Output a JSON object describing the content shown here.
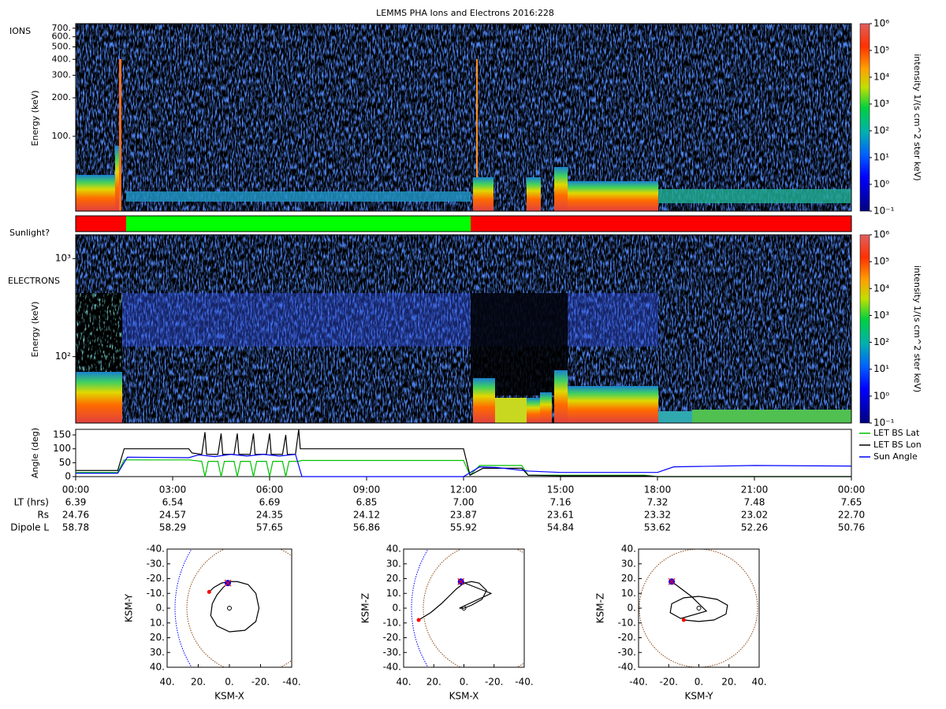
{
  "title": "LEMMS PHA Ions and Electrons  2016:228",
  "chart_data": [
    {
      "type": "spectrogram",
      "label": "IONS",
      "ylabel": "Energy (keV)",
      "log": true,
      "ylim": [
        26,
        760
      ],
      "yticks": [
        {
          "value": 100,
          "label": "100."
        },
        {
          "value": 200,
          "label": "200."
        },
        {
          "value": 300,
          "label": "300."
        },
        {
          "value": 400,
          "label": "400."
        },
        {
          "value": 500,
          "label": "500."
        },
        {
          "value": 600,
          "label": "600."
        },
        {
          "value": 700,
          "label": "700."
        }
      ],
      "colorbar": {
        "label": "intensity 1/(s cm^2 ster keV)",
        "lim": [
          0.1,
          1000000
        ],
        "ticks": [
          {
            "value": 0.1,
            "label": "10⁻¹"
          },
          {
            "value": 1,
            "label": "10⁰"
          },
          {
            "value": 10,
            "label": "10¹"
          },
          {
            "value": 100,
            "label": "10²"
          },
          {
            "value": 1000,
            "label": "10³"
          },
          {
            "value": 10000,
            "label": "10⁴"
          },
          {
            "value": 100000,
            "label": "10⁵"
          },
          {
            "value": 1000000,
            "label": "10⁶"
          }
        ]
      }
    },
    {
      "type": "timeline",
      "label": "Sunlight?",
      "xlim": [
        0,
        24
      ],
      "segments": [
        {
          "start": 0,
          "end": 1.56,
          "color": "#ff0000"
        },
        {
          "start": 1.56,
          "end": 12.22,
          "color": "#00ff00"
        },
        {
          "start": 12.22,
          "end": 24,
          "color": "#ff0000"
        }
      ]
    },
    {
      "type": "spectrogram",
      "label": "ELECTRONS",
      "ylabel": "Energy (keV)",
      "log": true,
      "ylim": [
        21,
        1750
      ],
      "yticks": [
        {
          "value": 100,
          "label": "10²"
        },
        {
          "value": 1000,
          "label": "10³"
        }
      ],
      "colorbar": {
        "label": "intensity 1/(s cm^2 ster keV)",
        "lim": [
          0.1,
          1000000
        ],
        "ticks": [
          {
            "value": 0.1,
            "label": "10⁻¹"
          },
          {
            "value": 1,
            "label": "10⁰"
          },
          {
            "value": 10,
            "label": "10¹"
          },
          {
            "value": 100,
            "label": "10²"
          },
          {
            "value": 1000,
            "label": "10³"
          },
          {
            "value": 10000,
            "label": "10⁴"
          },
          {
            "value": 100000,
            "label": "10⁵"
          },
          {
            "value": 1000000,
            "label": "10⁶"
          }
        ]
      }
    },
    {
      "type": "line",
      "ylabel": "Angle (deg)",
      "xlim": [
        0,
        24
      ],
      "ylim": [
        0,
        170
      ],
      "yticks": [
        0,
        50,
        100,
        150
      ],
      "legend": "right",
      "xticks": [
        {
          "value": 0,
          "label": "00:00"
        },
        {
          "value": 3,
          "label": "03:00"
        },
        {
          "value": 6,
          "label": "06:00"
        },
        {
          "value": 9,
          "label": "09:00"
        },
        {
          "value": 12,
          "label": "12:00"
        },
        {
          "value": 15,
          "label": "15:00"
        },
        {
          "value": 18,
          "label": "18:00"
        },
        {
          "value": 21,
          "label": "21:00"
        },
        {
          "value": 24,
          "label": "00:00"
        }
      ],
      "series": [
        {
          "name": "LET BS Lat",
          "color": "#00c000",
          "x": [
            0,
            1.3,
            1.5,
            3.5,
            3.9,
            4.0,
            4.1,
            4.4,
            4.5,
            4.6,
            4.9,
            5.0,
            5.1,
            5.4,
            5.5,
            5.6,
            5.9,
            6.0,
            6.1,
            6.4,
            6.5,
            6.6,
            6.9,
            7.0,
            12.0,
            12.2,
            12.5,
            13.8,
            14.0,
            17.6,
            18.0,
            24
          ],
          "values": [
            15,
            15,
            60,
            60,
            55,
            0,
            55,
            55,
            0,
            55,
            55,
            0,
            55,
            55,
            0,
            55,
            55,
            0,
            55,
            55,
            0,
            55,
            55,
            58,
            58,
            5,
            40,
            40,
            5,
            5,
            0,
            0
          ]
        },
        {
          "name": "LET BS Lon",
          "color": "#000000",
          "x": [
            0,
            1.3,
            1.5,
            3.5,
            3.6,
            3.9,
            4.0,
            4.05,
            4.4,
            4.5,
            4.55,
            4.9,
            5.0,
            5.05,
            5.4,
            5.5,
            5.55,
            5.9,
            6.0,
            6.05,
            6.4,
            6.5,
            6.55,
            6.8,
            6.9,
            6.95,
            12.0,
            12.2,
            12.6,
            13.0,
            13.8,
            14.0,
            15.0,
            16.0,
            17.6,
            18.0,
            24
          ],
          "values": [
            22,
            22,
            100,
            100,
            85,
            80,
            160,
            80,
            80,
            155,
            80,
            80,
            155,
            80,
            80,
            155,
            80,
            80,
            155,
            80,
            80,
            150,
            80,
            80,
            170,
            100,
            100,
            5,
            30,
            30,
            30,
            5,
            3,
            3,
            3,
            0,
            0
          ]
        },
        {
          "name": "Sun Angle",
          "color": "#0000ff",
          "x": [
            0,
            1.3,
            1.6,
            3.5,
            3.8,
            4.3,
            4.8,
            5.3,
            5.8,
            6.3,
            6.8,
            7.0,
            12.0,
            12.5,
            13.0,
            14.0,
            15.0,
            18.0,
            18.5,
            21.0,
            24
          ],
          "values": [
            12,
            12,
            70,
            68,
            78,
            72,
            80,
            74,
            80,
            74,
            80,
            0,
            0,
            35,
            33,
            20,
            15,
            15,
            35,
            40,
            38
          ]
        }
      ]
    },
    {
      "type": "table",
      "rows": [
        {
          "label": "LT (hrs)",
          "values": [
            "6.39",
            "6.54",
            "6.69",
            "6.85",
            "7.00",
            "7.16",
            "7.32",
            "7.48",
            "7.65"
          ]
        },
        {
          "label": "Rs",
          "values": [
            "24.76",
            "24.57",
            "24.35",
            "24.12",
            "23.87",
            "23.61",
            "23.32",
            "23.02",
            "22.70"
          ]
        },
        {
          "label": "Dipole L",
          "values": [
            "58.78",
            "58.29",
            "57.65",
            "56.86",
            "55.92",
            "54.84",
            "53.62",
            "52.26",
            "50.76"
          ]
        }
      ]
    },
    {
      "type": "orbit",
      "xlabel": "KSM-X",
      "ylabel": "KSM-Y",
      "xlim": [
        40,
        -40
      ],
      "ylim": [
        40,
        -40
      ],
      "xticks": [
        {
          "value": 40,
          "label": "40."
        },
        {
          "value": 20,
          "label": "20."
        },
        {
          "value": 0,
          "label": "0."
        },
        {
          "value": -20,
          "label": "-20."
        },
        {
          "value": -40,
          "label": "-40."
        }
      ],
      "yticks": [
        {
          "value": -40,
          "label": "-40."
        },
        {
          "value": -30,
          "label": "-30."
        },
        {
          "value": -20,
          "label": "-20."
        },
        {
          "value": -10,
          "label": "-10."
        },
        {
          "value": 0,
          "label": "0."
        },
        {
          "value": 10,
          "label": "10."
        },
        {
          "value": 20,
          "label": "20."
        },
        {
          "value": 30,
          "label": "30."
        },
        {
          "value": 40,
          "label": "40."
        }
      ],
      "x": [
        13,
        10,
        5,
        0,
        -5,
        -12,
        -17,
        -19,
        -17,
        -10,
        0,
        8,
        12,
        11,
        8,
        4,
        1
      ],
      "y": [
        -11,
        -14,
        -17,
        -18,
        -18,
        -16,
        -10,
        0,
        9,
        15,
        16,
        12,
        5,
        -3,
        -9,
        -14,
        -17
      ]
    },
    {
      "type": "orbit",
      "xlabel": "KSM-X",
      "ylabel": "KSM-Z",
      "xlim": [
        40,
        -40
      ],
      "ylim": [
        -40,
        40
      ],
      "xticks": [
        {
          "value": 40,
          "label": "40."
        },
        {
          "value": 20,
          "label": "20."
        },
        {
          "value": 0,
          "label": "0."
        },
        {
          "value": -20,
          "label": "-20."
        },
        {
          "value": -40,
          "label": "-40."
        }
      ],
      "yticks": [
        {
          "value": 40,
          "label": "40."
        },
        {
          "value": 30,
          "label": "30."
        },
        {
          "value": 20,
          "label": "20."
        },
        {
          "value": 10,
          "label": "10."
        },
        {
          "value": 0,
          "label": "0."
        },
        {
          "value": -10,
          "label": "-10."
        },
        {
          "value": -20,
          "label": "-20."
        },
        {
          "value": -30,
          "label": "-30."
        },
        {
          "value": -40,
          "label": "-40."
        }
      ],
      "x": [
        30,
        22,
        15,
        10,
        5,
        0,
        -5,
        -10,
        -15,
        -12,
        -5,
        0,
        3,
        -18,
        2
      ],
      "y": [
        -8,
        -3,
        3,
        8,
        13,
        17,
        18,
        17,
        12,
        6,
        2,
        0,
        0,
        10,
        18
      ]
    },
    {
      "type": "orbit",
      "xlabel": "KSM-Y",
      "ylabel": "KSM-Z",
      "xlim": [
        -40,
        40
      ],
      "ylim": [
        -40,
        40
      ],
      "xticks": [
        {
          "value": -40,
          "label": "-40."
        },
        {
          "value": -20,
          "label": "-20."
        },
        {
          "value": 0,
          "label": "0."
        },
        {
          "value": 20,
          "label": "20."
        },
        {
          "value": 40,
          "label": "40."
        }
      ],
      "yticks": [
        {
          "value": 40,
          "label": "40."
        },
        {
          "value": 30,
          "label": "30."
        },
        {
          "value": 20,
          "label": "20."
        },
        {
          "value": 10,
          "label": "10."
        },
        {
          "value": 0,
          "label": "0."
        },
        {
          "value": -10,
          "label": "-10."
        },
        {
          "value": -20,
          "label": "-20."
        },
        {
          "value": -30,
          "label": "-30."
        },
        {
          "value": -40,
          "label": "-40."
        }
      ],
      "x": [
        -10,
        0,
        10,
        18,
        19,
        12,
        0,
        -10,
        -18,
        -19,
        -12,
        5,
        -5,
        -18
      ],
      "y": [
        -8,
        -9,
        -8,
        -4,
        2,
        6,
        8,
        7,
        3,
        -3,
        -7,
        -2,
        8,
        18
      ]
    }
  ]
}
